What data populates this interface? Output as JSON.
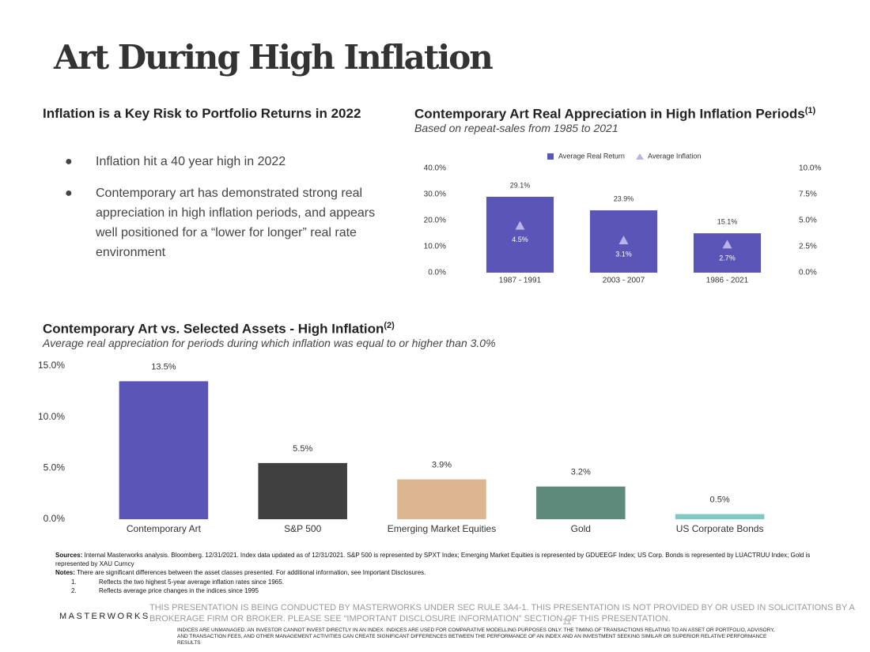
{
  "header": {
    "title": "Art During High Inflation"
  },
  "left_panel": {
    "heading": "Inflation is a Key Risk to Portfolio Returns in 2022",
    "bullets": [
      "Inflation hit a 40 year high in 2022",
      "Contemporary art has demonstrated strong real appreciation in high inflation periods, and appears well positioned for a “lower for longer” real rate environment"
    ]
  },
  "chart_data": [
    {
      "type": "bar",
      "title": "Contemporary Art Real Appreciation in High Inflation Periods",
      "title_note": "(1)",
      "subtitle": "Based on repeat-sales from 1985 to 2021",
      "categories": [
        "1987 - 1991",
        "2003 - 2007",
        "1986 - 2021"
      ],
      "series": [
        {
          "name": "Average Real Return",
          "color": "#5b55b8",
          "values": [
            29.1,
            23.9,
            15.1
          ],
          "value_labels": [
            "29.1%",
            "23.9%",
            "15.1%"
          ]
        },
        {
          "name": "Average Inflation",
          "color": "#b9b4e6",
          "axis": "y2",
          "values": [
            4.5,
            3.1,
            2.7
          ],
          "value_labels": [
            "4.5%",
            "3.1%",
            "2.7%"
          ]
        }
      ],
      "ylim": [
        0,
        40
      ],
      "yticks": [
        {
          "value": 0,
          "label": "0.0%"
        },
        {
          "value": 10,
          "label": "10.0%"
        },
        {
          "value": 20,
          "label": "20.0%"
        },
        {
          "value": 30,
          "label": "30.0%"
        },
        {
          "value": 40,
          "label": "40.0%"
        }
      ],
      "y2lim": [
        0,
        10
      ],
      "y2ticks": [
        {
          "value": 0,
          "label": "0.0%"
        },
        {
          "value": 2.5,
          "label": "2.5%"
        },
        {
          "value": 5,
          "label": "5.0%"
        },
        {
          "value": 7.5,
          "label": "7.5%"
        },
        {
          "value": 10,
          "label": "10.0%"
        }
      ],
      "legend": "top",
      "grid": false
    },
    {
      "type": "bar",
      "title": "Contemporary Art vs. Selected Assets - High Inflation",
      "title_note": "(2)",
      "subtitle": "Average real appreciation for periods during which inflation was equal to or higher than 3.0%",
      "categories": [
        "Contemporary Art",
        "S&P 500",
        "Emerging Market Equities",
        "Gold",
        "US Corporate Bonds"
      ],
      "values": [
        13.5,
        5.5,
        3.9,
        3.2,
        0.5
      ],
      "value_labels": [
        "13.5%",
        "5.5%",
        "3.9%",
        "3.2%",
        "0.5%"
      ],
      "colors": [
        "#5b55b8",
        "#404040",
        "#dbb691",
        "#5e8a7c",
        "#7ec9c4"
      ],
      "ylim": [
        0,
        15
      ],
      "yticks": [
        {
          "value": 0,
          "label": "0.0%"
        },
        {
          "value": 5,
          "label": "5.0%"
        },
        {
          "value": 10,
          "label": "10.0%"
        },
        {
          "value": 15,
          "label": "15.0%"
        }
      ],
      "grid": false
    }
  ],
  "notes": {
    "sources_label": "Sources:",
    "sources": "Internal Masterworks analysis. Bloomberg. 12/31/2021. Index data updated as of 12/31/2021. S&P 500 is represented by SPXT Index; Emerging Market Equities is represented by GDUEEGF Index; US Corp. Bonds is represented by LUACTRUU Index; Gold is represented by XAU Curncy",
    "notes_label": "Notes:",
    "notes": "There are significant differences between the asset classes presented. For additional information, see Important Disclosures.",
    "items": [
      {
        "number": "1.",
        "text": "Reflects the two highest 5-year average inflation rates since 1965."
      },
      {
        "number": "2.",
        "text": "Reflects average price changes in the indices since 1995"
      }
    ]
  },
  "footer": {
    "brand": "MASTERWORKS",
    "disclaimer": "THIS PRESENTATION  IS BEING CONDUCTED BY MASTERWORKS UNDER SEC RULE 3A4-1. THIS PRESENTATION  IS NOT PROVIDED BY OR USED IN SOLICITATIONS BY A BROKERAGE FIRM OR BROKER. PLEASE SEE “IMPORTANT DISCLOSURE INFORMATION” SECTION OF THIS PRESENTATION.",
    "page": "11",
    "indices": "INDICES ARE UNMANAGED. AN INVESTOR CANNOT INVEST DIRECTLY IN AN INDEX. INDICES ARE USED FOR COMPARATIVE MODELLING PURPOSES ONLY. THE TIMING OF TRANSACTIONS RELATING TO AN ASSET OR PORTFOLIO, ADVISORY, AND TRANSACTION FEES, AND OTHER MANAGEMENT ACTIVITIES CAN CREATE SIGNIFICANT DIFFERENCES BETWEEN THE PERFORMANCE OF AN INDEX AND AN INVESTMENT SEEKING SIMILAR OR SUPERIOR RELATIVE PERFORMANCE RESULTS"
  }
}
